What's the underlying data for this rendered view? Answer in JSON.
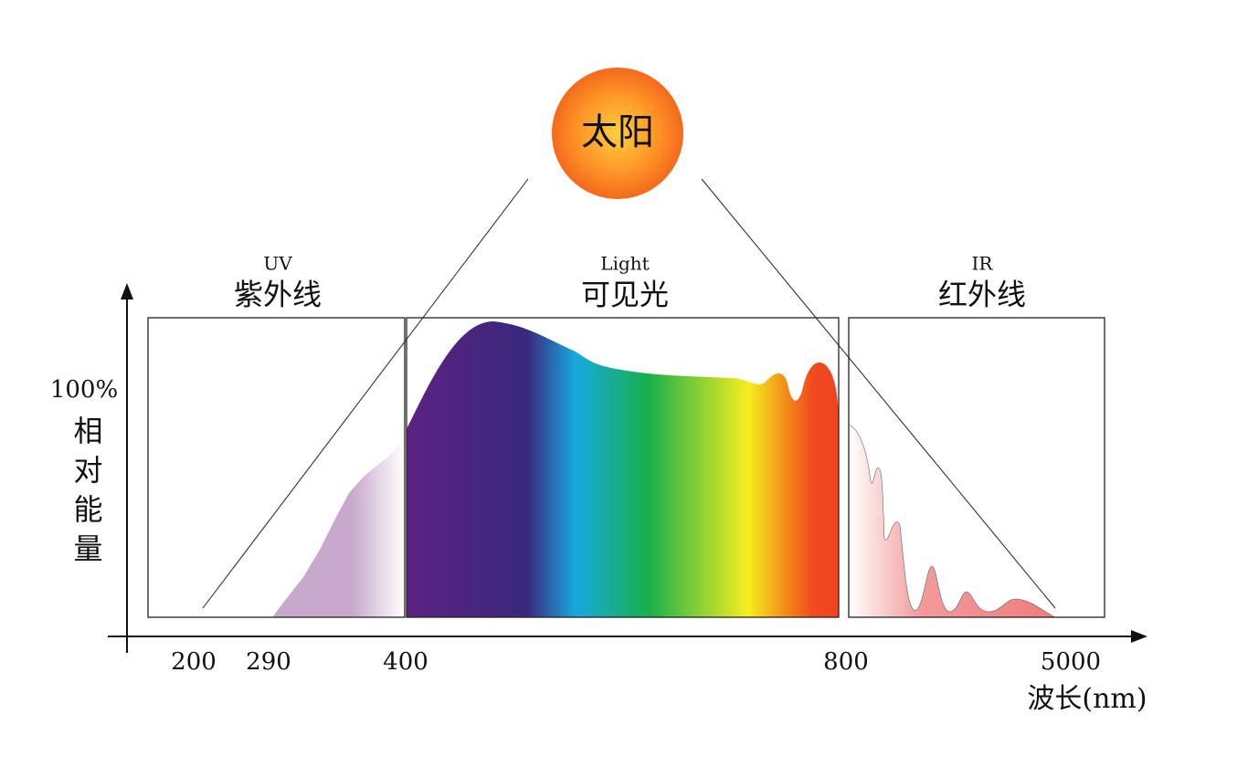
{
  "sun": {
    "label": "太阳"
  },
  "regions": [
    {
      "label_en": "UV",
      "label_zh": "紫外线"
    },
    {
      "label_en": "Light",
      "label_zh": "可见光"
    },
    {
      "label_en": "IR",
      "label_zh": "红外线"
    }
  ],
  "y_axis": {
    "tick_label": "100%",
    "title": "相对能量"
  },
  "x_axis": {
    "tick_labels": [
      "200",
      "290",
      "400",
      "800",
      "5000"
    ],
    "title": "波长(nm)"
  }
}
